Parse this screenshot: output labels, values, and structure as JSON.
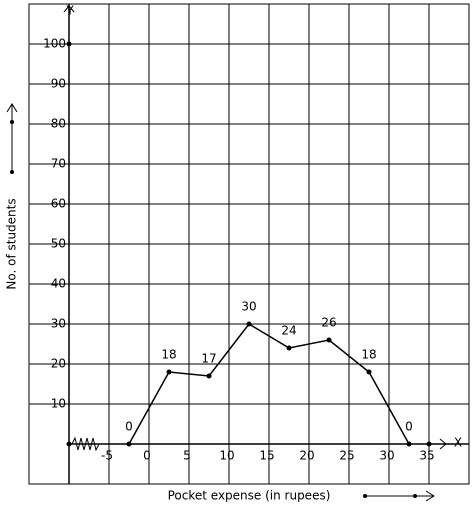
{
  "chart_data": {
    "type": "line",
    "x_label": "Pocket expense (in rupees)",
    "y_label": "No. of students",
    "x_axis_name": "X",
    "y_axis_name": "Y",
    "x": [
      -2.5,
      2.5,
      7.5,
      12.5,
      17.5,
      22.5,
      27.5,
      32.5
    ],
    "values": [
      0,
      18,
      17,
      30,
      24,
      26,
      18,
      0
    ],
    "color": "#000000",
    "xlim": [
      -15,
      40
    ],
    "ylim": [
      -10,
      110
    ],
    "xticks": [
      -5,
      0,
      5,
      10,
      15,
      20,
      25,
      30,
      35
    ],
    "yticks": [
      10,
      20,
      30,
      40,
      50,
      60,
      70,
      80,
      90,
      100
    ],
    "grid": true
  }
}
